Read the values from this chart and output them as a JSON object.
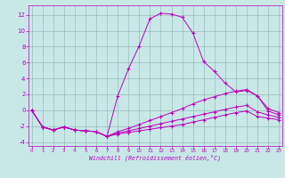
{
  "xlabel": "Windchill (Refroidissement éolien,°C)",
  "bg_color": "#c8e8e8",
  "grid_color": "#99bbbb",
  "line_color": "#bb00bb",
  "xlim_min": -0.3,
  "xlim_max": 23.3,
  "ylim_min": -4.5,
  "ylim_max": 13.2,
  "yticks": [
    -4,
    -2,
    0,
    2,
    4,
    6,
    8,
    10,
    12
  ],
  "s1": [
    0.0,
    -2.1,
    -2.5,
    -2.1,
    -2.5,
    -2.6,
    -2.7,
    -3.3,
    1.8,
    5.2,
    8.1,
    11.5,
    12.2,
    12.1,
    11.7,
    9.7,
    6.1,
    4.9,
    3.4,
    2.3,
    2.5,
    1.8,
    -0.1,
    -0.6
  ],
  "s2": [
    0.0,
    -2.1,
    -2.5,
    -2.1,
    -2.5,
    -2.6,
    -2.7,
    -3.3,
    -2.7,
    -2.3,
    -1.8,
    -1.3,
    -0.8,
    -0.3,
    0.2,
    0.8,
    1.3,
    1.7,
    2.1,
    2.4,
    2.6,
    1.8,
    0.2,
    -0.3
  ],
  "s3": [
    0.0,
    -2.1,
    -2.5,
    -2.1,
    -2.5,
    -2.6,
    -2.7,
    -3.3,
    -2.9,
    -2.6,
    -2.3,
    -2.0,
    -1.7,
    -1.4,
    -1.1,
    -0.8,
    -0.5,
    -0.2,
    0.1,
    0.4,
    0.6,
    -0.2,
    -0.6,
    -0.9
  ],
  "s4": [
    0.0,
    -2.1,
    -2.5,
    -2.1,
    -2.5,
    -2.6,
    -2.7,
    -3.3,
    -3.0,
    -2.8,
    -2.6,
    -2.4,
    -2.2,
    -2.0,
    -1.8,
    -1.5,
    -1.2,
    -0.9,
    -0.6,
    -0.3,
    -0.1,
    -0.8,
    -1.0,
    -1.2
  ]
}
